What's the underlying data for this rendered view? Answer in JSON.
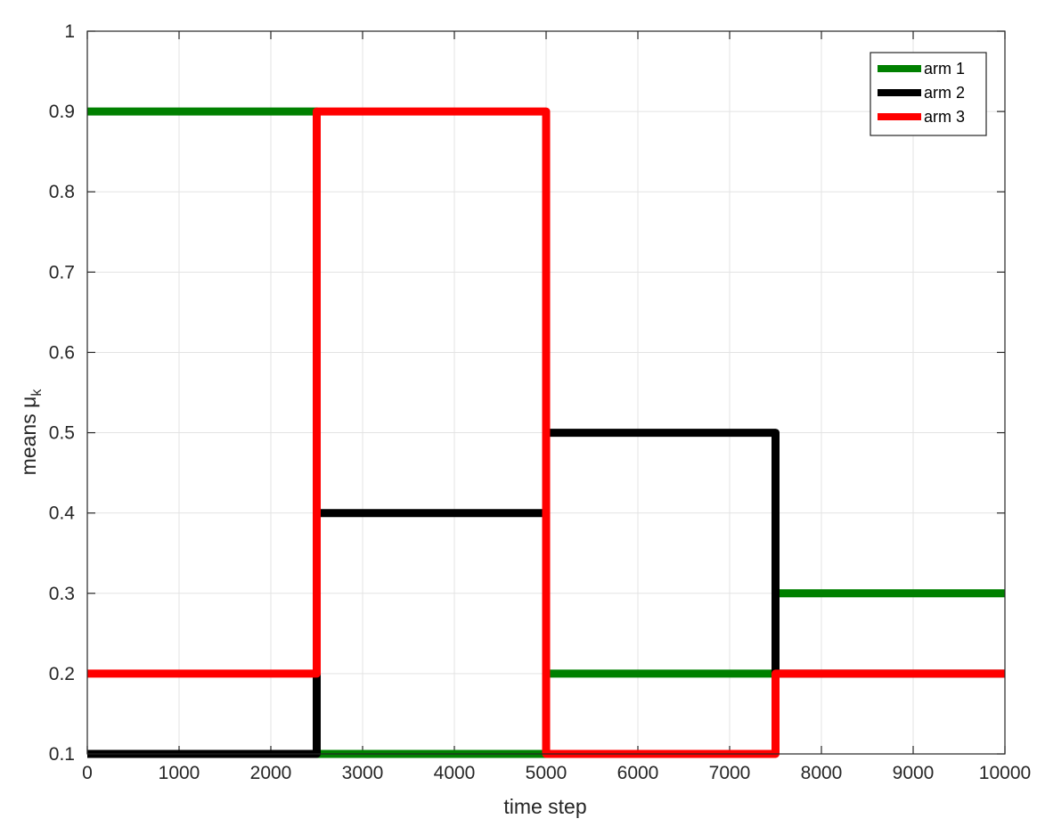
{
  "chart_data": {
    "type": "line",
    "step": true,
    "xlabel": "time step",
    "ylabel": "means μ",
    "ylabel_subscript": "k",
    "xlim": [
      0,
      10000
    ],
    "ylim": [
      0.1,
      1
    ],
    "xticks": [
      0,
      1000,
      2000,
      3000,
      4000,
      5000,
      6000,
      7000,
      8000,
      9000,
      10000
    ],
    "yticks": [
      0.1,
      0.2,
      0.3,
      0.4,
      0.5,
      0.6,
      0.7,
      0.8,
      0.9,
      1
    ],
    "xtick_labels": [
      "0",
      "1000",
      "2000",
      "3000",
      "4000",
      "5000",
      "6000",
      "7000",
      "8000",
      "9000",
      "10000"
    ],
    "ytick_labels": [
      "0.1",
      "0.2",
      "0.3",
      "0.4",
      "0.5",
      "0.6",
      "0.7",
      "0.8",
      "0.9",
      "1"
    ],
    "grid": true,
    "legend_position": "top-right",
    "series": [
      {
        "name": "arm 1",
        "color": "#008000",
        "x": [
          0,
          2500,
          2500,
          5000,
          5000,
          7500,
          7500,
          10000
        ],
        "y": [
          0.9,
          0.9,
          0.1,
          0.1,
          0.2,
          0.2,
          0.3,
          0.3
        ]
      },
      {
        "name": "arm 2",
        "color": "#000000",
        "x": [
          0,
          2500,
          2500,
          5000,
          5000,
          7500,
          7500,
          10000
        ],
        "y": [
          0.1,
          0.1,
          0.4,
          0.4,
          0.5,
          0.5,
          0.2,
          0.2
        ]
      },
      {
        "name": "arm 3",
        "color": "#ff0000",
        "x": [
          0,
          2500,
          2500,
          5000,
          5000,
          7500,
          7500,
          10000
        ],
        "y": [
          0.2,
          0.2,
          0.9,
          0.9,
          0.1,
          0.1,
          0.2,
          0.2
        ]
      }
    ]
  }
}
